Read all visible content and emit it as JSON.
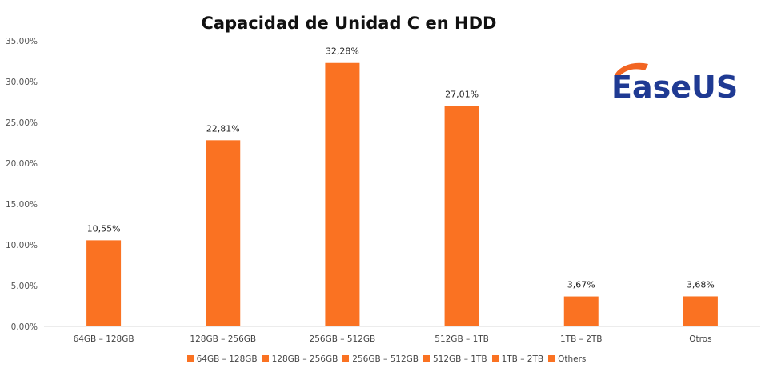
{
  "chart_data": {
    "type": "bar",
    "title": "Capacidad de Unidad C en HDD",
    "categories": [
      "64GB – 128GB",
      "128GB – 256GB",
      "256GB – 512GB",
      "512GB – 1TB",
      "1TB – 2TB",
      "Otros"
    ],
    "values": [
      10.55,
      22.81,
      32.28,
      27.01,
      3.67,
      3.68
    ],
    "data_labels": [
      "10,55%",
      "22,81%",
      "32,28%",
      "27,01%",
      "3,67%",
      "3,68%"
    ],
    "ylim": [
      0,
      35
    ],
    "yticks": [
      "0.00%",
      "5.00%",
      "10.00%",
      "15.00%",
      "20.00%",
      "25.00%",
      "30.00%",
      "35.00%"
    ],
    "xlabel": "",
    "ylabel": "",
    "bar_color": "#FA7222",
    "grid": false,
    "legend_position": "bottom",
    "legend": [
      "64GB – 128GB",
      "128GB – 256GB",
      "256GB – 512GB",
      "512GB – 1TB",
      "1TB – 2TB",
      "Others"
    ]
  },
  "logo": {
    "text": "EaseUS",
    "primary_color": "#1F3A93",
    "accent_color": "#F26522"
  }
}
